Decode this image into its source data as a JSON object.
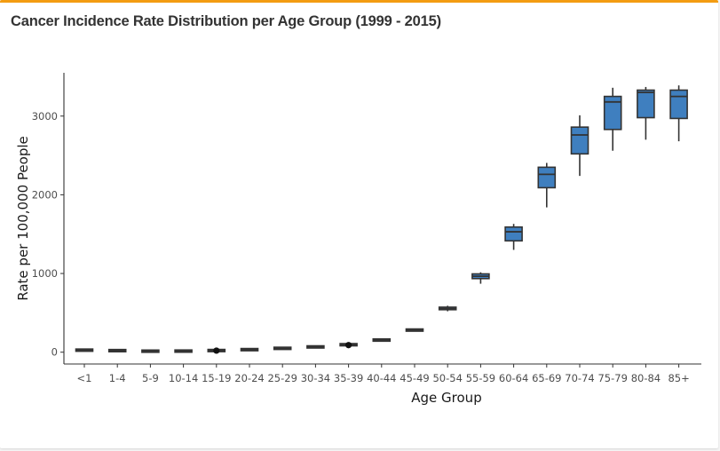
{
  "box": {
    "title": "Cancer Incidence Rate Distribution per Age Group (1999 - 2015)"
  },
  "chart_data": {
    "type": "box",
    "xlabel": "Age Group",
    "ylabel": "Rate per 100,000 People",
    "ylim": [
      -150,
      3550
    ],
    "yticks": [
      0,
      1000,
      2000,
      3000
    ],
    "grid": false,
    "colors": {
      "box_fill": "#3f7fbf",
      "box_stroke": "#333333",
      "axis": "#333333",
      "header_accent": "#f39c12"
    },
    "categories": [
      "<1",
      "1-4",
      "5-9",
      "10-14",
      "15-19",
      "20-24",
      "25-29",
      "30-34",
      "35-39",
      "40-44",
      "45-49",
      "50-54",
      "55-59",
      "60-64",
      "65-69",
      "70-74",
      "75-79",
      "80-84",
      "85+"
    ],
    "boxes": [
      {
        "min": 22,
        "q1": 24,
        "median": 26,
        "q3": 28,
        "max": 30,
        "outliers": []
      },
      {
        "min": 17,
        "q1": 19,
        "median": 20,
        "q3": 21,
        "max": 23,
        "outliers": []
      },
      {
        "min": 11,
        "q1": 12,
        "median": 13,
        "q3": 14,
        "max": 15,
        "outliers": []
      },
      {
        "min": 11,
        "q1": 13,
        "median": 14,
        "q3": 15,
        "max": 16,
        "outliers": []
      },
      {
        "min": 18,
        "q1": 20,
        "median": 21,
        "q3": 22,
        "max": 23,
        "outliers": [
          20
        ]
      },
      {
        "min": 29,
        "q1": 31,
        "median": 33,
        "q3": 34,
        "max": 36,
        "outliers": []
      },
      {
        "min": 44,
        "q1": 47,
        "median": 49,
        "q3": 51,
        "max": 53,
        "outliers": []
      },
      {
        "min": 62,
        "q1": 65,
        "median": 67,
        "q3": 69,
        "max": 72,
        "outliers": []
      },
      {
        "min": 88,
        "q1": 92,
        "median": 95,
        "q3": 98,
        "max": 102,
        "outliers": [
          90
        ]
      },
      {
        "min": 146,
        "q1": 151,
        "median": 154,
        "q3": 157,
        "max": 162,
        "outliers": []
      },
      {
        "min": 268,
        "q1": 276,
        "median": 281,
        "q3": 286,
        "max": 294,
        "outliers": []
      },
      {
        "min": 520,
        "q1": 540,
        "median": 555,
        "q3": 572,
        "max": 590,
        "outliers": []
      },
      {
        "min": 870,
        "q1": 935,
        "median": 965,
        "q3": 995,
        "max": 1015,
        "outliers": []
      },
      {
        "min": 1300,
        "q1": 1415,
        "median": 1530,
        "q3": 1590,
        "max": 1630,
        "outliers": []
      },
      {
        "min": 1840,
        "q1": 2090,
        "median": 2260,
        "q3": 2350,
        "max": 2405,
        "outliers": []
      },
      {
        "min": 2240,
        "q1": 2520,
        "median": 2760,
        "q3": 2860,
        "max": 3010,
        "outliers": []
      },
      {
        "min": 2560,
        "q1": 2830,
        "median": 3180,
        "q3": 3250,
        "max": 3360,
        "outliers": []
      },
      {
        "min": 2700,
        "q1": 2980,
        "median": 3300,
        "q3": 3330,
        "max": 3370,
        "outliers": []
      },
      {
        "min": 2680,
        "q1": 2970,
        "median": 3250,
        "q3": 3330,
        "max": 3390,
        "outliers": []
      }
    ]
  }
}
